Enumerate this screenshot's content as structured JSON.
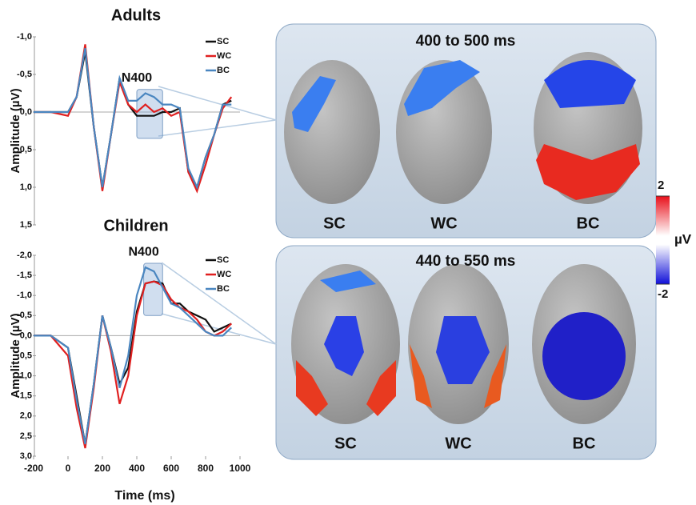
{
  "chart_data": [
    {
      "type": "line",
      "title": "Adults",
      "y_label": "Amplitude (µV)",
      "inverted_y": true,
      "x": [
        -200,
        -100,
        0,
        50,
        100,
        150,
        200,
        250,
        300,
        350,
        400,
        450,
        500,
        550,
        600,
        650,
        700,
        750,
        800,
        850,
        900,
        950
      ],
      "xlim": [
        -200,
        1000
      ],
      "ylim": [
        -1.0,
        1.5
      ],
      "yticks": [
        {
          "value": -1.0,
          "label": "-1,0"
        },
        {
          "value": -0.5,
          "label": "-0,5"
        },
        {
          "value": 0,
          "label": "0,0"
        },
        {
          "value": 0.5,
          "label": "0,5"
        },
        {
          "value": 1.0,
          "label": "1,0"
        },
        {
          "value": 1.5,
          "label": "1,5"
        }
      ],
      "highlight": {
        "label": "N400",
        "xrange": [
          400,
          550
        ],
        "yrange": [
          -0.3,
          0.35
        ]
      },
      "series": [
        {
          "name": "SC",
          "color": "#111111",
          "values": [
            0,
            0,
            0.0,
            -0.2,
            -0.8,
            0.2,
            1.0,
            0.3,
            -0.45,
            -0.1,
            0.05,
            0.05,
            0.05,
            0.0,
            0.0,
            -0.05,
            0.8,
            1.0,
            0.6,
            0.3,
            -0.1,
            -0.15
          ]
        },
        {
          "name": "WC",
          "color": "#e02020",
          "values": [
            0,
            0,
            0.05,
            -0.2,
            -0.9,
            0.2,
            1.05,
            0.3,
            -0.4,
            -0.1,
            0.0,
            -0.1,
            0.0,
            -0.05,
            0.05,
            0.0,
            0.8,
            1.05,
            0.7,
            0.3,
            -0.05,
            -0.2
          ]
        },
        {
          "name": "BC",
          "color": "#4a86c0",
          "values": [
            0,
            0,
            0.0,
            -0.2,
            -0.85,
            0.2,
            1.0,
            0.3,
            -0.45,
            -0.15,
            -0.15,
            -0.25,
            -0.2,
            -0.1,
            -0.1,
            -0.05,
            0.75,
            1.0,
            0.6,
            0.3,
            -0.1,
            -0.1
          ]
        }
      ]
    },
    {
      "type": "line",
      "title": "Children",
      "y_label": "Amplitude (µV)",
      "x_label": "Time (ms)",
      "inverted_y": true,
      "x": [
        -200,
        -100,
        0,
        50,
        100,
        150,
        200,
        250,
        300,
        350,
        400,
        450,
        500,
        550,
        600,
        650,
        700,
        750,
        800,
        850,
        900,
        950
      ],
      "xlim": [
        -200,
        1000
      ],
      "xticks": [
        -200,
        0,
        200,
        400,
        600,
        800,
        1000
      ],
      "ylim": [
        -2.0,
        3.0
      ],
      "yticks": [
        {
          "value": -2.0,
          "label": "-2,0"
        },
        {
          "value": -1.5,
          "label": "-1,5"
        },
        {
          "value": -1.0,
          "label": "-1,0"
        },
        {
          "value": -0.5,
          "label": "-0,5"
        },
        {
          "value": 0,
          "label": "0,0"
        },
        {
          "value": 0.5,
          "label": "0,5"
        },
        {
          "value": 1.0,
          "label": "1,0"
        },
        {
          "value": 1.5,
          "label": "1,5"
        },
        {
          "value": 2.0,
          "label": "2,0"
        },
        {
          "value": 2.5,
          "label": "2,5"
        },
        {
          "value": 3.0,
          "label": "3,0"
        }
      ],
      "highlight": {
        "label": "N400",
        "xrange": [
          440,
          550
        ],
        "yrange": [
          -1.8,
          -0.5
        ]
      },
      "series": [
        {
          "name": "SC",
          "color": "#111111",
          "values": [
            0,
            0,
            0.3,
            1.5,
            2.7,
            1.2,
            -0.5,
            0.3,
            1.2,
            0.8,
            -0.6,
            -1.3,
            -1.35,
            -1.3,
            -0.8,
            -0.8,
            -0.6,
            -0.5,
            -0.4,
            -0.1,
            -0.2,
            -0.3
          ]
        },
        {
          "name": "WC",
          "color": "#e02020",
          "values": [
            0,
            0,
            0.5,
            1.8,
            2.8,
            1.3,
            -0.5,
            0.4,
            1.7,
            1.0,
            -0.5,
            -1.3,
            -1.35,
            -1.25,
            -0.9,
            -0.7,
            -0.6,
            -0.4,
            -0.1,
            0.0,
            -0.1,
            -0.3
          ]
        },
        {
          "name": "BC",
          "color": "#4a86c0",
          "values": [
            0,
            0,
            0.3,
            1.6,
            2.7,
            1.2,
            -0.5,
            0.3,
            1.3,
            0.5,
            -1.0,
            -1.7,
            -1.6,
            -1.2,
            -0.8,
            -0.7,
            -0.5,
            -0.3,
            -0.1,
            0.0,
            0.0,
            -0.2
          ]
        }
      ]
    }
  ],
  "panels": [
    {
      "title": "400 to 500 ms",
      "labels": [
        "SC",
        "WC",
        "BC"
      ]
    },
    {
      "title": "440 to 550 ms",
      "labels": [
        "SC",
        "WC",
        "BC"
      ]
    }
  ],
  "colorbar": {
    "ticks": [
      2,
      -2
    ],
    "label": "µV"
  }
}
